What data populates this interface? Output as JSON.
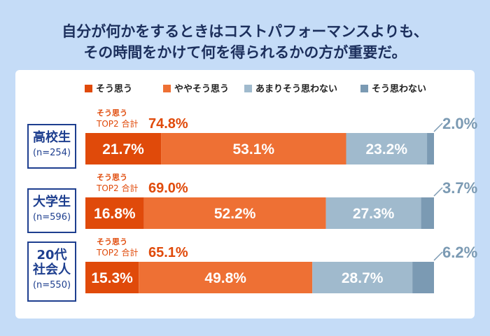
{
  "title_lines": [
    "自分が何かをするときはコストパフォーマンスよりも、",
    "その時間をかけて何を得られるかの方が重要だ。"
  ],
  "chart_data": {
    "type": "bar",
    "orientation": "horizontal-stacked-100",
    "legend_position": "top",
    "series": [
      {
        "name": "そう思う",
        "color": "#e04a0a"
      },
      {
        "name": "ややそう思う",
        "color": "#ee7034"
      },
      {
        "name": "あまりそう思わない",
        "color": "#a0bacd"
      },
      {
        "name": "そう思わない",
        "color": "#7b9ab3"
      }
    ],
    "categories": [
      {
        "label": "高校生",
        "n": "(n=254)",
        "values": [
          21.7,
          53.1,
          23.2,
          2.0
        ],
        "top2_total": "74.8%"
      },
      {
        "label": "大学生",
        "n": "(n=596)",
        "values": [
          16.8,
          52.2,
          27.3,
          3.7
        ],
        "top2_total": "69.0%"
      },
      {
        "label": "20代\n社会人",
        "n": "(n=550)",
        "values": [
          15.3,
          49.8,
          28.7,
          6.2
        ],
        "top2_total": "65.1%"
      }
    ],
    "top2_label_line1": "そう思う",
    "top2_label_line2": "TOP2 合計",
    "value_suffix": "%"
  }
}
